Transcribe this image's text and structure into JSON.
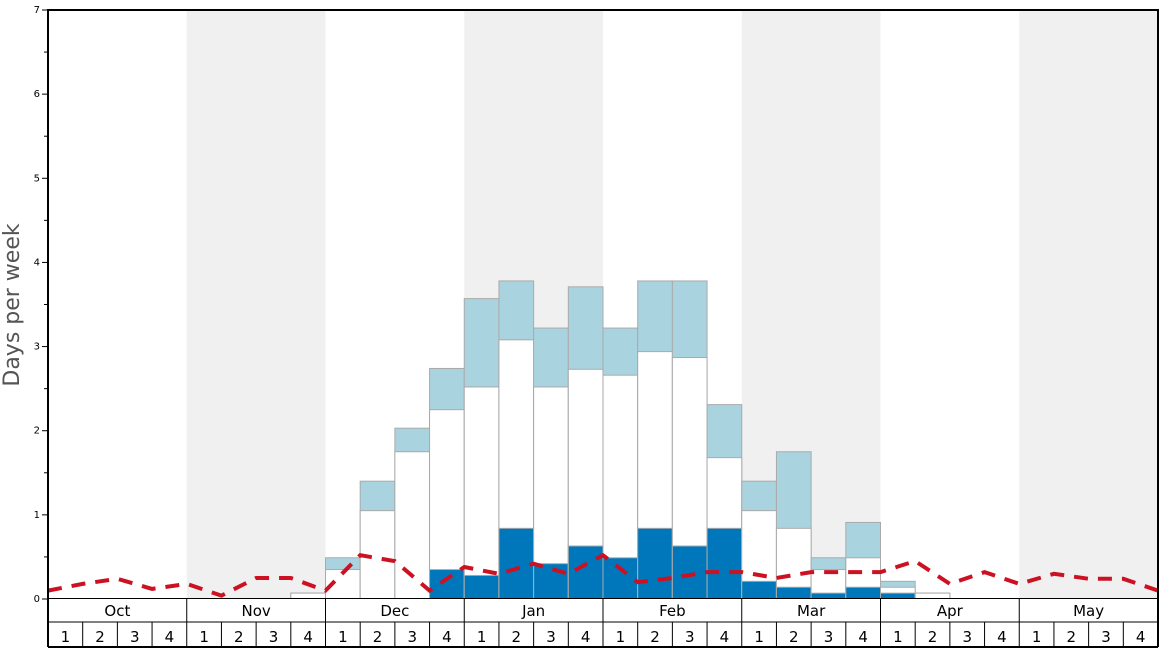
{
  "chart_data": {
    "type": "bar",
    "ylabel": "Days per week",
    "ylim": [
      0,
      7
    ],
    "y_ticks": [
      0,
      1,
      2,
      3,
      4,
      5,
      6,
      7
    ],
    "months": [
      "Oct",
      "Nov",
      "Dec",
      "Jan",
      "Feb",
      "Mar",
      "Apr",
      "May"
    ],
    "weeks_per_month": [
      "1",
      "2",
      "3",
      "4"
    ],
    "colors": {
      "dark": "#0077bb",
      "white": "#ffffff",
      "light": "#aad3e0",
      "shade": "#f0f0f0",
      "line": "#cc1122",
      "bar_stroke": "#aaaaaa"
    },
    "series": [
      {
        "values": [
          0,
          0,
          0,
          0,
          0,
          0,
          0,
          0,
          0,
          0,
          0,
          0.35,
          0.28,
          0.84,
          0.42,
          0.63,
          0.49,
          0.84,
          0.63,
          0.84,
          0.21,
          0.14,
          0.07,
          0.14,
          0.07,
          0,
          0,
          0,
          0,
          0,
          0,
          0
        ]
      },
      {
        "values": [
          0,
          0,
          0,
          0,
          0,
          0,
          0,
          0.07,
          0.35,
          1.05,
          1.75,
          2.25,
          2.52,
          3.08,
          2.52,
          2.73,
          2.66,
          2.94,
          2.87,
          1.68,
          1.05,
          0.84,
          0.35,
          0.49,
          0.14,
          0.07,
          0,
          0,
          0,
          0,
          0,
          0
        ]
      },
      {
        "values": [
          0,
          0,
          0,
          0,
          0,
          0,
          0,
          0.07,
          0.49,
          1.4,
          2.03,
          2.74,
          3.57,
          3.78,
          3.22,
          3.71,
          3.22,
          3.78,
          3.78,
          2.31,
          1.4,
          1.75,
          0.49,
          0.91,
          0.21,
          0.07,
          0,
          0,
          0,
          0,
          0,
          0
        ]
      },
      {
        "values": [
          0.1,
          0.18,
          0.24,
          0.12,
          0.18,
          0.04,
          0.25,
          0.25,
          0.1,
          0.52,
          0.45,
          0.1,
          0.38,
          0.3,
          0.42,
          0.3,
          0.52,
          0.2,
          0.25,
          0.32,
          0.32,
          0.25,
          0.32,
          0.32,
          0.32,
          0.45,
          0.18,
          0.32,
          0.18,
          0.3,
          0.24,
          0.24,
          0.1
        ]
      }
    ],
    "grid": false
  }
}
